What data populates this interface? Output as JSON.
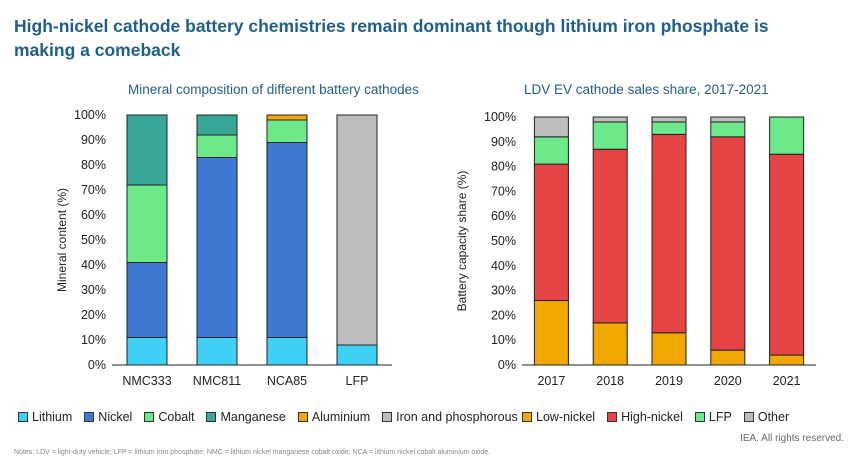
{
  "title": "High-nickel cathode battery chemistries remain dominant though lithium iron phosphate is making a comeback",
  "credit": "IEA. All rights reserved.",
  "footnote": "Notes: LDV = light-duty vehicle; LFP = lithium iron phosphate; NMC = lithium nickel manganese cobalt oxide; NCA = lithium nickel cobalt aluminium oxide.",
  "chart_data": [
    {
      "type": "bar",
      "stacked": true,
      "title": "Mineral composition of different battery cathodes",
      "ylabel": "Mineral content (%)",
      "xlabel": "",
      "ylim": [
        0,
        100
      ],
      "yticks": [
        "0%",
        "10%",
        "20%",
        "30%",
        "40%",
        "50%",
        "60%",
        "70%",
        "80%",
        "90%",
        "100%"
      ],
      "categories": [
        "NMC333",
        "NMC811",
        "NCA85",
        "LFP"
      ],
      "legend_position": "bottom",
      "series": [
        {
          "name": "Lithium",
          "color": "#3fd0f5",
          "values": [
            11,
            11,
            11,
            8
          ]
        },
        {
          "name": "Nickel",
          "color": "#3d78d2",
          "values": [
            30,
            72,
            78,
            0
          ]
        },
        {
          "name": "Cobalt",
          "color": "#6de98c",
          "values": [
            31,
            9,
            9,
            0
          ]
        },
        {
          "name": "Manganese",
          "color": "#3aa898",
          "values": [
            28,
            8,
            0,
            0
          ]
        },
        {
          "name": "Aluminium",
          "color": "#f0a800",
          "values": [
            0,
            0,
            2,
            0
          ]
        },
        {
          "name": "Iron and phosphorous",
          "color": "#bdbdbd",
          "values": [
            0,
            0,
            0,
            92
          ]
        }
      ]
    },
    {
      "type": "bar",
      "stacked": true,
      "title": "LDV EV cathode sales share, 2017-2021",
      "ylabel": "Battery capacity share (%)",
      "xlabel": "",
      "ylim": [
        0,
        100
      ],
      "yticks": [
        "0%",
        "10%",
        "20%",
        "30%",
        "40%",
        "50%",
        "60%",
        "70%",
        "80%",
        "90%",
        "100%"
      ],
      "categories": [
        "2017",
        "2018",
        "2019",
        "2020",
        "2021"
      ],
      "legend_position": "bottom",
      "series": [
        {
          "name": "Low-nickel",
          "color": "#f0a800",
          "values": [
            26,
            17,
            13,
            6,
            4
          ]
        },
        {
          "name": "High-nickel",
          "color": "#e54545",
          "values": [
            55,
            70,
            80,
            86,
            81
          ]
        },
        {
          "name": "LFP",
          "color": "#6de98c",
          "values": [
            11,
            11,
            5,
            6,
            15
          ]
        },
        {
          "name": "Other",
          "color": "#bdbdbd",
          "values": [
            8,
            2,
            2,
            2,
            0
          ]
        }
      ]
    }
  ]
}
